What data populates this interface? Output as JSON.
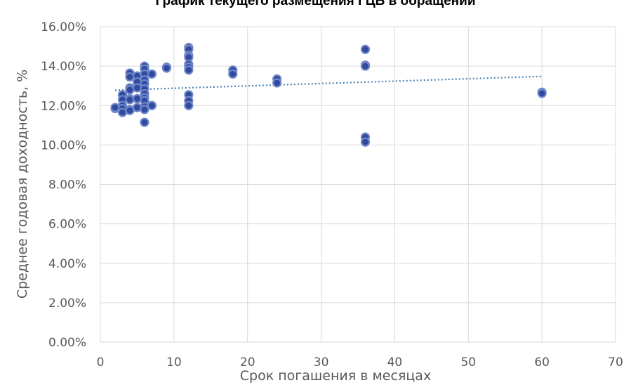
{
  "chart_data": {
    "type": "scatter",
    "title": "График текущего размещения ГЦБ в обращении",
    "xlabel": "Срок погашения в месяцах",
    "ylabel": "Среднее годовая доходность, %",
    "xlim": [
      0,
      70
    ],
    "ylim": [
      0,
      0.16
    ],
    "x_ticks": [
      0,
      10,
      20,
      30,
      40,
      50,
      60,
      70
    ],
    "x_tick_labels": [
      "0",
      "10",
      "20",
      "30",
      "40",
      "50",
      "60",
      "70"
    ],
    "y_ticks": [
      0,
      0.02,
      0.04,
      0.06,
      0.08,
      0.1,
      0.12,
      0.14,
      0.16
    ],
    "y_tick_labels": [
      "0.00%",
      "2.00%",
      "4.00%",
      "6.00%",
      "8.00%",
      "10.00%",
      "12.00%",
      "14.00%",
      "16.00%"
    ],
    "grid": true,
    "marker_color": "#2f4a9e",
    "marker_edge_color": "#6f86c8",
    "trendline": {
      "style": "dotted",
      "color": "#4a7fb5",
      "x": [
        2,
        60
      ],
      "y": [
        0.1278,
        0.1348
      ]
    },
    "points": [
      {
        "x": 2,
        "y": 0.1185
      },
      {
        "x": 2,
        "y": 0.119
      },
      {
        "x": 3,
        "y": 0.1255
      },
      {
        "x": 3,
        "y": 0.123
      },
      {
        "x": 3,
        "y": 0.12
      },
      {
        "x": 3,
        "y": 0.1185
      },
      {
        "x": 3,
        "y": 0.1165
      },
      {
        "x": 4,
        "y": 0.1365
      },
      {
        "x": 4,
        "y": 0.1345
      },
      {
        "x": 4,
        "y": 0.129
      },
      {
        "x": 4,
        "y": 0.128
      },
      {
        "x": 4,
        "y": 0.1235
      },
      {
        "x": 4,
        "y": 0.123
      },
      {
        "x": 4,
        "y": 0.118
      },
      {
        "x": 4,
        "y": 0.1175
      },
      {
        "x": 5,
        "y": 0.135
      },
      {
        "x": 5,
        "y": 0.132
      },
      {
        "x": 5,
        "y": 0.129
      },
      {
        "x": 5,
        "y": 0.1235
      },
      {
        "x": 5,
        "y": 0.119
      },
      {
        "x": 6,
        "y": 0.14
      },
      {
        "x": 6,
        "y": 0.1385
      },
      {
        "x": 6,
        "y": 0.136
      },
      {
        "x": 6,
        "y": 0.133
      },
      {
        "x": 6,
        "y": 0.131
      },
      {
        "x": 6,
        "y": 0.1285
      },
      {
        "x": 6,
        "y": 0.126
      },
      {
        "x": 6,
        "y": 0.124
      },
      {
        "x": 6,
        "y": 0.1225
      },
      {
        "x": 6,
        "y": 0.1195
      },
      {
        "x": 6,
        "y": 0.118
      },
      {
        "x": 6,
        "y": 0.1115
      },
      {
        "x": 7,
        "y": 0.136
      },
      {
        "x": 7,
        "y": 0.12
      },
      {
        "x": 9,
        "y": 0.1395
      },
      {
        "x": 9,
        "y": 0.139
      },
      {
        "x": 12,
        "y": 0.1495
      },
      {
        "x": 12,
        "y": 0.1485
      },
      {
        "x": 12,
        "y": 0.1455
      },
      {
        "x": 12,
        "y": 0.1445
      },
      {
        "x": 12,
        "y": 0.141
      },
      {
        "x": 12,
        "y": 0.1395
      },
      {
        "x": 12,
        "y": 0.138
      },
      {
        "x": 12,
        "y": 0.1255
      },
      {
        "x": 12,
        "y": 0.1225
      },
      {
        "x": 12,
        "y": 0.12
      },
      {
        "x": 18,
        "y": 0.138
      },
      {
        "x": 18,
        "y": 0.136
      },
      {
        "x": 24,
        "y": 0.1335
      },
      {
        "x": 24,
        "y": 0.1315
      },
      {
        "x": 36,
        "y": 0.1485
      },
      {
        "x": 36,
        "y": 0.1405
      },
      {
        "x": 36,
        "y": 0.14
      },
      {
        "x": 36,
        "y": 0.104
      },
      {
        "x": 36,
        "y": 0.1015
      },
      {
        "x": 60,
        "y": 0.1268
      },
      {
        "x": 60,
        "y": 0.1262
      }
    ]
  }
}
